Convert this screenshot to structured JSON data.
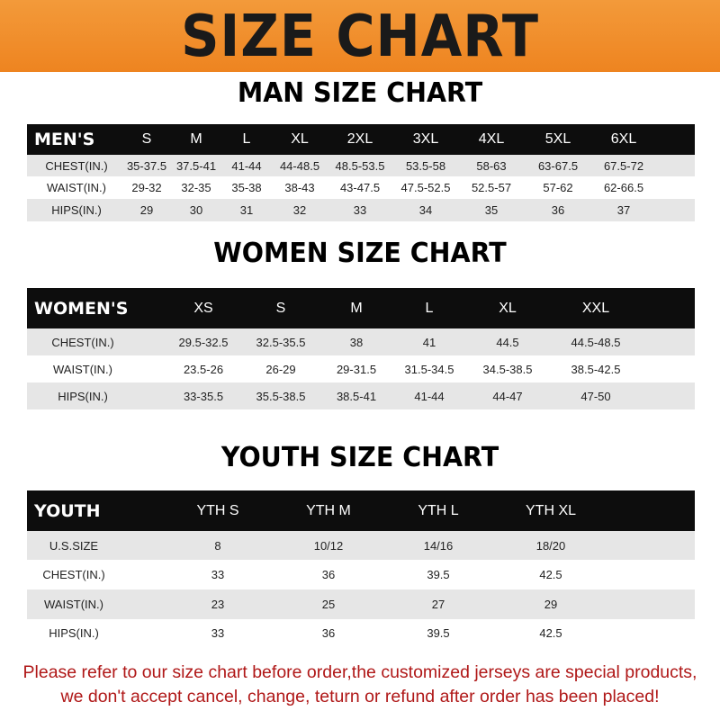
{
  "banner": {
    "title": "SIZE CHART",
    "color": "#ef8a24"
  },
  "men": {
    "title": "MAN SIZE CHART",
    "header": "MEN'S",
    "sizes": [
      "S",
      "M",
      "L",
      "XL",
      "2XL",
      "3XL",
      "4XL",
      "5XL",
      "6XL"
    ],
    "rows": [
      {
        "label": "CHEST(IN.)",
        "values": [
          "35-37.5",
          "37.5-41",
          "41-44",
          "44-48.5",
          "48.5-53.5",
          "53.5-58",
          "58-63",
          "63-67.5",
          "67.5-72"
        ]
      },
      {
        "label": "WAIST(IN.)",
        "values": [
          "29-32",
          "32-35",
          "35-38",
          "38-43",
          "43-47.5",
          "47.5-52.5",
          "52.5-57",
          "57-62",
          "62-66.5"
        ]
      },
      {
        "label": "HIPS(IN.)",
        "values": [
          "29",
          "30",
          "31",
          "32",
          "33",
          "34",
          "35",
          "36",
          "37"
        ]
      }
    ]
  },
  "women": {
    "title": "WOMEN SIZE CHART",
    "header": "WOMEN'S",
    "sizes": [
      "XS",
      "S",
      "M",
      "L",
      "XL",
      "XXL"
    ],
    "rows": [
      {
        "label": "CHEST(IN.)",
        "values": [
          "29.5-32.5",
          "32.5-35.5",
          "38",
          "41",
          "44.5",
          "44.5-48.5"
        ]
      },
      {
        "label": "WAIST(IN.)",
        "values": [
          "23.5-26",
          "26-29",
          "29-31.5",
          "31.5-34.5",
          "34.5-38.5",
          "38.5-42.5"
        ]
      },
      {
        "label": "HIPS(IN.)",
        "values": [
          "33-35.5",
          "35.5-38.5",
          "38.5-41",
          "41-44",
          "44-47",
          "47-50"
        ]
      }
    ]
  },
  "youth": {
    "title": "YOUTH SIZE CHART",
    "header": "YOUTH",
    "sizes": [
      "YTH S",
      "YTH M",
      "YTH L",
      "YTH XL"
    ],
    "rows": [
      {
        "label": "U.S.SIZE",
        "values": [
          "8",
          "10/12",
          "14/16",
          "18/20"
        ]
      },
      {
        "label": "CHEST(IN.)",
        "values": [
          "33",
          "36",
          "39.5",
          "42.5"
        ]
      },
      {
        "label": "WAIST(IN.)",
        "values": [
          "23",
          "25",
          "27",
          "29"
        ]
      },
      {
        "label": "HIPS(IN.)",
        "values": [
          "33",
          "36",
          "39.5",
          "42.5"
        ]
      }
    ]
  },
  "note": {
    "line1": "Please refer to our size chart before order,the customized jerseys are special products,",
    "line2": "we don't accept cancel, change, teturn or refund after order has been placed!",
    "color": "#b01818"
  }
}
